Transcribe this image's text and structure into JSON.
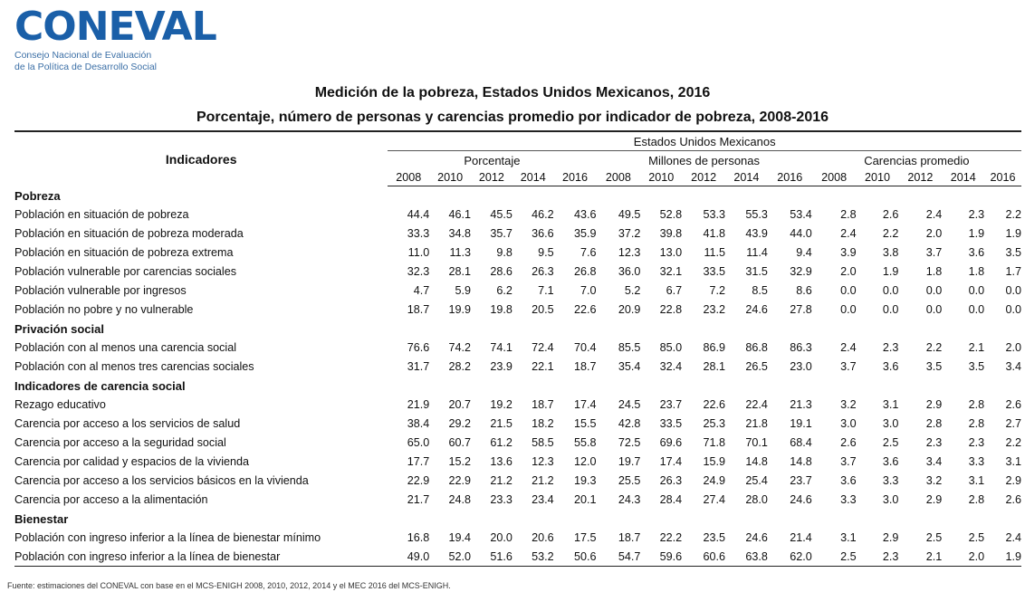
{
  "logo": {
    "word": "CONEVAL",
    "subtitle_line1": "Consejo Nacional de Evaluación",
    "subtitle_line2": "de la Política de Desarrollo Social"
  },
  "title": "Medición de la pobreza, Estados Unidos Mexicanos, 2016",
  "subtitle": "Porcentaje, número de personas y carencias promedio por indicador de pobreza, 2008-2016",
  "table": {
    "indicator_header": "Indicadores",
    "country_header": "Estados Unidos Mexicanos",
    "groups": [
      "Porcentaje",
      "Millones de personas",
      "Carencias promedio"
    ],
    "years": [
      "2008",
      "2010",
      "2012",
      "2014",
      "2016"
    ],
    "rows": [
      {
        "type": "section",
        "label": "Pobreza"
      },
      {
        "type": "row",
        "level": 1,
        "label": "Población en situación de pobreza",
        "values": [
          "44.4",
          "46.1",
          "45.5",
          "46.2",
          "43.6",
          "49.5",
          "52.8",
          "53.3",
          "55.3",
          "53.4",
          "2.8",
          "2.6",
          "2.4",
          "2.3",
          "2.2"
        ]
      },
      {
        "type": "row",
        "level": 2,
        "label": "Población en situación de pobreza moderada",
        "values": [
          "33.3",
          "34.8",
          "35.7",
          "36.6",
          "35.9",
          "37.2",
          "39.8",
          "41.8",
          "43.9",
          "44.0",
          "2.4",
          "2.2",
          "2.0",
          "1.9",
          "1.9"
        ]
      },
      {
        "type": "row",
        "level": 2,
        "label": "Población en situación de pobreza extrema",
        "values": [
          "11.0",
          "11.3",
          "9.8",
          "9.5",
          "7.6",
          "12.3",
          "13.0",
          "11.5",
          "11.4",
          "9.4",
          "3.9",
          "3.8",
          "3.7",
          "3.6",
          "3.5"
        ]
      },
      {
        "type": "row",
        "level": 1,
        "label": "Población vulnerable por carencias sociales",
        "values": [
          "32.3",
          "28.1",
          "28.6",
          "26.3",
          "26.8",
          "36.0",
          "32.1",
          "33.5",
          "31.5",
          "32.9",
          "2.0",
          "1.9",
          "1.8",
          "1.8",
          "1.7"
        ]
      },
      {
        "type": "row",
        "level": 1,
        "label": "Población vulnerable por ingresos",
        "values": [
          "4.7",
          "5.9",
          "6.2",
          "7.1",
          "7.0",
          "5.2",
          "6.7",
          "7.2",
          "8.5",
          "8.6",
          "0.0",
          "0.0",
          "0.0",
          "0.0",
          "0.0"
        ]
      },
      {
        "type": "row",
        "level": 1,
        "label": "Población no pobre y no vulnerable",
        "values": [
          "18.7",
          "19.9",
          "19.8",
          "20.5",
          "22.6",
          "20.9",
          "22.8",
          "23.2",
          "24.6",
          "27.8",
          "0.0",
          "0.0",
          "0.0",
          "0.0",
          "0.0"
        ]
      },
      {
        "type": "section",
        "label": "Privación social"
      },
      {
        "type": "row",
        "level": 1,
        "label": "Población con al menos una carencia social",
        "values": [
          "76.6",
          "74.2",
          "74.1",
          "72.4",
          "70.4",
          "85.5",
          "85.0",
          "86.9",
          "86.8",
          "86.3",
          "2.4",
          "2.3",
          "2.2",
          "2.1",
          "2.0"
        ]
      },
      {
        "type": "row",
        "level": 1,
        "label": "Población con al menos tres carencias sociales",
        "values": [
          "31.7",
          "28.2",
          "23.9",
          "22.1",
          "18.7",
          "35.4",
          "32.4",
          "28.1",
          "26.5",
          "23.0",
          "3.7",
          "3.6",
          "3.5",
          "3.5",
          "3.4"
        ]
      },
      {
        "type": "section",
        "label": "Indicadores de carencia social"
      },
      {
        "type": "row",
        "level": 1,
        "label": "Rezago educativo",
        "values": [
          "21.9",
          "20.7",
          "19.2",
          "18.7",
          "17.4",
          "24.5",
          "23.7",
          "22.6",
          "22.4",
          "21.3",
          "3.2",
          "3.1",
          "2.9",
          "2.8",
          "2.6"
        ]
      },
      {
        "type": "row",
        "level": 1,
        "label": "Carencia por acceso a los servicios de salud",
        "values": [
          "38.4",
          "29.2",
          "21.5",
          "18.2",
          "15.5",
          "42.8",
          "33.5",
          "25.3",
          "21.8",
          "19.1",
          "3.0",
          "3.0",
          "2.8",
          "2.8",
          "2.7"
        ]
      },
      {
        "type": "row",
        "level": 1,
        "label": "Carencia por acceso a la seguridad social",
        "values": [
          "65.0",
          "60.7",
          "61.2",
          "58.5",
          "55.8",
          "72.5",
          "69.6",
          "71.8",
          "70.1",
          "68.4",
          "2.6",
          "2.5",
          "2.3",
          "2.3",
          "2.2"
        ]
      },
      {
        "type": "row",
        "level": 1,
        "label": "Carencia por calidad y espacios de la vivienda",
        "values": [
          "17.7",
          "15.2",
          "13.6",
          "12.3",
          "12.0",
          "19.7",
          "17.4",
          "15.9",
          "14.8",
          "14.8",
          "3.7",
          "3.6",
          "3.4",
          "3.3",
          "3.1"
        ]
      },
      {
        "type": "row",
        "level": 1,
        "label": "Carencia por acceso a los servicios básicos en la vivienda",
        "values": [
          "22.9",
          "22.9",
          "21.2",
          "21.2",
          "19.3",
          "25.5",
          "26.3",
          "24.9",
          "25.4",
          "23.7",
          "3.6",
          "3.3",
          "3.2",
          "3.1",
          "2.9"
        ]
      },
      {
        "type": "row",
        "level": 1,
        "label": "Carencia por acceso a la alimentación",
        "values": [
          "21.7",
          "24.8",
          "23.3",
          "23.4",
          "20.1",
          "24.3",
          "28.4",
          "27.4",
          "28.0",
          "24.6",
          "3.3",
          "3.0",
          "2.9",
          "2.8",
          "2.6"
        ]
      },
      {
        "type": "section",
        "label": "Bienestar"
      },
      {
        "type": "row",
        "level": 1,
        "label": "Población con ingreso inferior a la línea de bienestar mínimo",
        "values": [
          "16.8",
          "19.4",
          "20.0",
          "20.6",
          "17.5",
          "18.7",
          "22.2",
          "23.5",
          "24.6",
          "21.4",
          "3.1",
          "2.9",
          "2.5",
          "2.5",
          "2.4"
        ]
      },
      {
        "type": "row",
        "level": 1,
        "label": "Población con ingreso inferior a la línea de bienestar",
        "values": [
          "49.0",
          "52.0",
          "51.6",
          "53.2",
          "50.6",
          "54.7",
          "59.6",
          "60.6",
          "63.8",
          "62.0",
          "2.5",
          "2.3",
          "2.1",
          "2.0",
          "1.9"
        ]
      }
    ]
  },
  "source": "Fuente: estimaciones del CONEVAL con base en el MCS-ENIGH 2008, 2010, 2012, 2014 y el MEC 2016 del MCS-ENIGH."
}
